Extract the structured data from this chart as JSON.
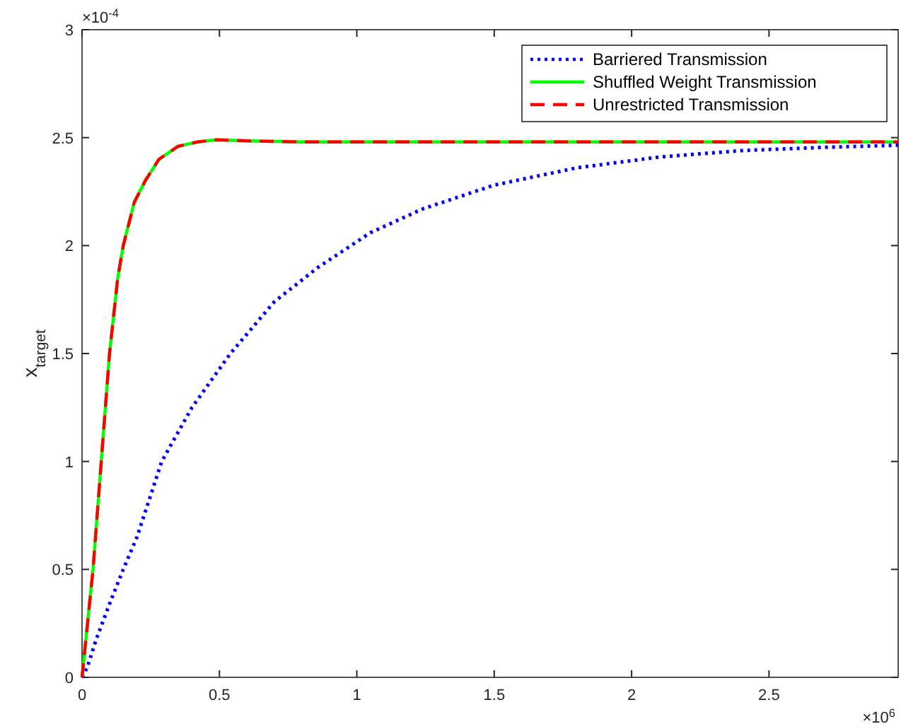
{
  "chart_data": {
    "type": "line",
    "ylabel": "x$_{target}$",
    "xlim": [
      0,
      2.97
    ],
    "ylim": [
      0,
      3
    ],
    "xticks": [
      0,
      0.5,
      1,
      1.5,
      2,
      2.5
    ],
    "yticks": [
      0,
      0.5,
      1,
      1.5,
      2,
      2.5,
      3
    ],
    "annotations": [
      "×10$^{-4}$",
      "×10$^{6}$"
    ],
    "legend": "top right",
    "grid": false,
    "series": [
      {
        "name": "Barriered Transmission",
        "color": "#0000ff",
        "line_style": "dotted",
        "x": [
          0,
          0.02,
          0.05,
          0.1,
          0.15,
          0.2,
          0.29,
          0.4,
          0.54,
          0.7,
          0.86,
          1.05,
          1.24,
          1.5,
          1.8,
          2.1,
          2.4,
          2.7,
          2.97
        ],
        "values": [
          0,
          0.05,
          0.17,
          0.34,
          0.5,
          0.65,
          1.0,
          1.25,
          1.5,
          1.74,
          1.9,
          2.06,
          2.17,
          2.28,
          2.36,
          2.41,
          2.44,
          2.455,
          2.465
        ]
      },
      {
        "name": "Shuffled Weight Transmission",
        "color": "#00ff00",
        "line_style": "solid",
        "x": [
          0,
          0.02,
          0.04,
          0.07,
          0.1,
          0.13,
          0.15,
          0.19,
          0.23,
          0.28,
          0.35,
          0.42,
          0.49,
          0.6,
          0.8,
          1.2,
          2,
          2.97
        ],
        "values": [
          0,
          0.25,
          0.5,
          1.0,
          1.5,
          1.85,
          2.0,
          2.2,
          2.3,
          2.4,
          2.46,
          2.48,
          2.49,
          2.485,
          2.48,
          2.48,
          2.48,
          2.48
        ]
      },
      {
        "name": "Unrestricted Transmission",
        "color": "#ff0000",
        "line_style": "dashed",
        "x": [
          0,
          0.02,
          0.04,
          0.07,
          0.1,
          0.13,
          0.15,
          0.19,
          0.23,
          0.28,
          0.35,
          0.42,
          0.49,
          0.6,
          0.8,
          1.2,
          2,
          2.97
        ],
        "values": [
          0,
          0.25,
          0.5,
          1.0,
          1.5,
          1.85,
          2.0,
          2.2,
          2.3,
          2.4,
          2.46,
          2.48,
          2.49,
          2.485,
          2.48,
          2.48,
          2.48,
          2.48
        ]
      }
    ]
  }
}
